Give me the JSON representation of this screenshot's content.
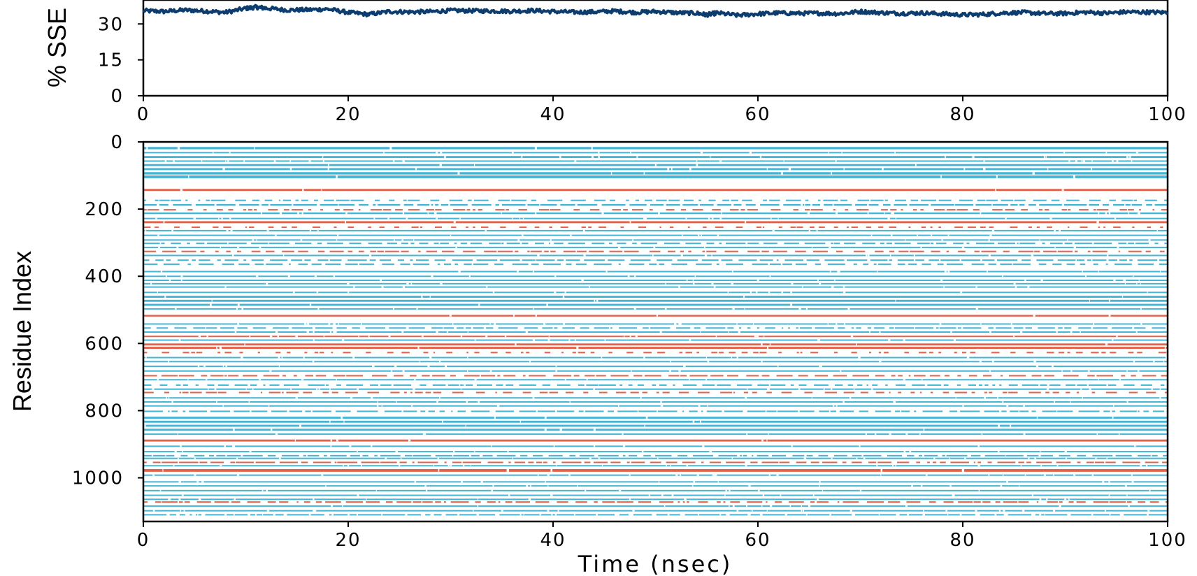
{
  "chart_data": [
    {
      "type": "line",
      "panel": "top",
      "title": "",
      "xlabel": "",
      "ylabel": "% SSE",
      "xlim": [
        0,
        100
      ],
      "ylim": [
        0,
        40
      ],
      "xticks": [
        "0",
        "20",
        "40",
        "60",
        "80",
        "100"
      ],
      "yticks": [
        "0",
        "15",
        "30"
      ],
      "grid": false,
      "series": [
        {
          "color": "#0d3d6e",
          "x": [
            0,
            2,
            4,
            6,
            8,
            10,
            11,
            12,
            14,
            16,
            18,
            20,
            22,
            24,
            26,
            28,
            30,
            32,
            34,
            36,
            38,
            40,
            42,
            44,
            46,
            48,
            50,
            52,
            54,
            55,
            56,
            58,
            60,
            62,
            64,
            66,
            68,
            70,
            72,
            74,
            76,
            78,
            80,
            82,
            84,
            86,
            88,
            90,
            92,
            94,
            96,
            98,
            100
          ],
          "y": [
            35.5,
            35.2,
            35.8,
            35.4,
            34.8,
            36.5,
            37.0,
            36.6,
            35.8,
            35.9,
            36.2,
            34.8,
            34.0,
            35.2,
            35.0,
            35.1,
            35.6,
            35.5,
            35.4,
            35.3,
            35.6,
            35.2,
            34.9,
            35.0,
            35.4,
            34.8,
            35.2,
            34.7,
            34.5,
            33.8,
            34.6,
            33.6,
            34.2,
            34.6,
            34.4,
            34.5,
            34.3,
            35.2,
            34.7,
            34.4,
            34.6,
            34.2,
            33.8,
            34.0,
            34.6,
            34.8,
            34.3,
            34.4,
            34.9,
            34.5,
            35.0,
            34.9,
            34.8
          ]
        }
      ]
    },
    {
      "type": "heatmap",
      "panel": "bottom",
      "title": "",
      "xlabel": "Time (nsec)",
      "ylabel": "Residue Index",
      "xlim": [
        0,
        100
      ],
      "ylim": [
        1130,
        0
      ],
      "xticks": [
        "0",
        "20",
        "40",
        "60",
        "80",
        "100"
      ],
      "yticks": [
        "0",
        "200",
        "400",
        "600",
        "800",
        "1000"
      ],
      "grid": false,
      "legend": "none",
      "colors": {
        "strand": "#45b5d5",
        "helix": "#e4614a",
        "background": "#ffffff"
      },
      "bands": [
        {
          "start": 15,
          "end": 22,
          "class": "strand",
          "density": 1.0
        },
        {
          "start": 30,
          "end": 34,
          "class": "strand",
          "density": 0.95
        },
        {
          "start": 42,
          "end": 48,
          "class": "strand",
          "density": 0.95
        },
        {
          "start": 55,
          "end": 58,
          "class": "strand",
          "density": 0.9
        },
        {
          "start": 66,
          "end": 72,
          "class": "strand",
          "density": 1.0
        },
        {
          "start": 78,
          "end": 84,
          "class": "strand",
          "density": 0.95
        },
        {
          "start": 90,
          "end": 97,
          "class": "strand",
          "density": 1.0
        },
        {
          "start": 100,
          "end": 108,
          "class": "strand",
          "density": 1.0
        },
        {
          "start": 140,
          "end": 146,
          "class": "helix",
          "density": 1.0
        },
        {
          "start": 172,
          "end": 175,
          "class": "strand",
          "density": 0.5
        },
        {
          "start": 185,
          "end": 190,
          "class": "strand",
          "density": 0.8
        },
        {
          "start": 200,
          "end": 203,
          "class": "helix",
          "density": 0.4
        },
        {
          "start": 210,
          "end": 215,
          "class": "strand",
          "density": 0.9
        },
        {
          "start": 226,
          "end": 230,
          "class": "strand",
          "density": 0.9
        },
        {
          "start": 236,
          "end": 242,
          "class": "helix",
          "density": 1.0
        },
        {
          "start": 252,
          "end": 255,
          "class": "helix",
          "density": 0.25
        },
        {
          "start": 262,
          "end": 266,
          "class": "strand",
          "density": 0.95
        },
        {
          "start": 276,
          "end": 280,
          "class": "strand",
          "density": 0.95
        },
        {
          "start": 290,
          "end": 294,
          "class": "strand",
          "density": 0.95
        },
        {
          "start": 300,
          "end": 304,
          "class": "strand",
          "density": 0.7
        },
        {
          "start": 312,
          "end": 316,
          "class": "strand",
          "density": 0.95
        },
        {
          "start": 324,
          "end": 328,
          "class": "helix",
          "density": 0.5
        },
        {
          "start": 336,
          "end": 340,
          "class": "strand",
          "density": 0.95
        },
        {
          "start": 350,
          "end": 354,
          "class": "strand",
          "density": 0.7
        },
        {
          "start": 362,
          "end": 366,
          "class": "strand",
          "density": 0.6
        },
        {
          "start": 384,
          "end": 388,
          "class": "strand",
          "density": 0.95
        },
        {
          "start": 398,
          "end": 402,
          "class": "strand",
          "density": 0.95
        },
        {
          "start": 410,
          "end": 414,
          "class": "strand",
          "density": 0.95
        },
        {
          "start": 420,
          "end": 424,
          "class": "strand",
          "density": 0.95
        },
        {
          "start": 430,
          "end": 434,
          "class": "strand",
          "density": 0.95
        },
        {
          "start": 446,
          "end": 450,
          "class": "strand",
          "density": 0.95
        },
        {
          "start": 458,
          "end": 464,
          "class": "strand",
          "density": 1.0
        },
        {
          "start": 470,
          "end": 476,
          "class": "strand",
          "density": 1.0
        },
        {
          "start": 482,
          "end": 488,
          "class": "strand",
          "density": 1.0
        },
        {
          "start": 495,
          "end": 499,
          "class": "strand",
          "density": 0.95
        },
        {
          "start": 515,
          "end": 520,
          "class": "helix",
          "density": 1.0
        },
        {
          "start": 540,
          "end": 544,
          "class": "strand",
          "density": 0.9
        },
        {
          "start": 552,
          "end": 556,
          "class": "strand",
          "density": 0.7
        },
        {
          "start": 564,
          "end": 568,
          "class": "strand",
          "density": 0.9
        },
        {
          "start": 577,
          "end": 581,
          "class": "helix",
          "density": 0.9
        },
        {
          "start": 588,
          "end": 592,
          "class": "strand",
          "density": 0.95
        },
        {
          "start": 600,
          "end": 606,
          "class": "helix",
          "density": 1.0
        },
        {
          "start": 610,
          "end": 616,
          "class": "helix",
          "density": 1.0
        },
        {
          "start": 625,
          "end": 628,
          "class": "helix",
          "density": 0.25
        },
        {
          "start": 640,
          "end": 644,
          "class": "strand",
          "density": 0.95
        },
        {
          "start": 652,
          "end": 656,
          "class": "strand",
          "density": 0.95
        },
        {
          "start": 666,
          "end": 670,
          "class": "strand",
          "density": 0.95
        },
        {
          "start": 680,
          "end": 684,
          "class": "strand",
          "density": 0.95
        },
        {
          "start": 694,
          "end": 698,
          "class": "helix",
          "density": 0.6
        },
        {
          "start": 706,
          "end": 710,
          "class": "strand",
          "density": 0.95
        },
        {
          "start": 722,
          "end": 726,
          "class": "strand",
          "density": 0.6
        },
        {
          "start": 734,
          "end": 738,
          "class": "strand",
          "density": 0.9
        },
        {
          "start": 744,
          "end": 748,
          "class": "helix",
          "density": 0.4
        },
        {
          "start": 760,
          "end": 764,
          "class": "strand",
          "density": 0.95
        },
        {
          "start": 772,
          "end": 776,
          "class": "strand",
          "density": 0.95
        },
        {
          "start": 784,
          "end": 788,
          "class": "strand",
          "density": 0.95
        },
        {
          "start": 800,
          "end": 804,
          "class": "strand",
          "density": 0.7
        },
        {
          "start": 818,
          "end": 824,
          "class": "strand",
          "density": 1.0
        },
        {
          "start": 830,
          "end": 836,
          "class": "strand",
          "density": 1.0
        },
        {
          "start": 842,
          "end": 848,
          "class": "strand",
          "density": 1.0
        },
        {
          "start": 854,
          "end": 860,
          "class": "strand",
          "density": 1.0
        },
        {
          "start": 868,
          "end": 872,
          "class": "strand",
          "density": 0.95
        },
        {
          "start": 886,
          "end": 892,
          "class": "helix",
          "density": 1.0
        },
        {
          "start": 904,
          "end": 908,
          "class": "strand",
          "density": 0.95
        },
        {
          "start": 920,
          "end": 924,
          "class": "strand",
          "density": 0.95
        },
        {
          "start": 932,
          "end": 936,
          "class": "strand",
          "density": 0.7
        },
        {
          "start": 940,
          "end": 944,
          "class": "strand",
          "density": 0.9
        },
        {
          "start": 952,
          "end": 956,
          "class": "helix",
          "density": 0.7
        },
        {
          "start": 962,
          "end": 966,
          "class": "strand",
          "density": 0.9
        },
        {
          "start": 974,
          "end": 982,
          "class": "helix",
          "density": 1.0
        },
        {
          "start": 990,
          "end": 994,
          "class": "strand",
          "density": 0.9
        },
        {
          "start": 1010,
          "end": 1014,
          "class": "strand",
          "density": 0.95
        },
        {
          "start": 1022,
          "end": 1026,
          "class": "strand",
          "density": 0.95
        },
        {
          "start": 1036,
          "end": 1040,
          "class": "strand",
          "density": 0.95
        },
        {
          "start": 1050,
          "end": 1054,
          "class": "strand",
          "density": 0.95
        },
        {
          "start": 1062,
          "end": 1066,
          "class": "strand",
          "density": 0.95
        },
        {
          "start": 1070,
          "end": 1074,
          "class": "helix",
          "density": 0.6
        },
        {
          "start": 1082,
          "end": 1086,
          "class": "strand",
          "density": 0.95
        },
        {
          "start": 1096,
          "end": 1100,
          "class": "strand",
          "density": 0.9
        },
        {
          "start": 1108,
          "end": 1112,
          "class": "strand",
          "density": 0.8
        }
      ]
    }
  ]
}
